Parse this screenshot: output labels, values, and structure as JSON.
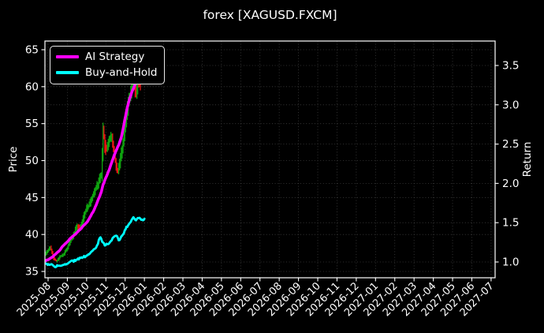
{
  "title": "forex [XAGUSD.FXCM]",
  "colors": {
    "background": "#000000",
    "text": "#ffffff",
    "grid": "#3f3f3f",
    "spine": "#ffffff",
    "strategy_line": "#ff00ff",
    "buyhold_line": "#00ffff",
    "price_up": "#0fa50f",
    "price_down": "#ee1414"
  },
  "chart_data": {
    "type": "line",
    "title": "forex [XAGUSD.FXCM]",
    "xlabel": "",
    "ylabel_left": "Price",
    "ylabel_right": "Return",
    "grid": true,
    "legend_position": "upper left",
    "x_tick_labels": [
      "2025-08",
      "2025-09",
      "2025-10",
      "2025-11",
      "2025-12",
      "2026-01",
      "2026-02",
      "2026-03",
      "2026-04",
      "2026-05",
      "2026-06",
      "2026-07",
      "2026-08",
      "2026-09",
      "2026-10",
      "2026-11",
      "2026-12",
      "2027-01",
      "2027-02",
      "2027-03",
      "2027-04",
      "2027-05",
      "2027-06",
      "2027-07"
    ],
    "x_axis_note": "series t values are months after 2025-08; data ends ~2026-01, axis extends to 2027-07",
    "y_left": {
      "label": "Price",
      "ticks": [
        35,
        40,
        45,
        50,
        55,
        60,
        65
      ],
      "range": [
        34.1,
        66.2
      ]
    },
    "y_right": {
      "label": "Return",
      "ticks": [
        1.0,
        1.5,
        2.0,
        2.5,
        3.0,
        3.5
      ],
      "range": [
        0.8,
        3.81
      ]
    },
    "legend": [
      {
        "label": "AI Strategy",
        "color": "#ff00ff"
      },
      {
        "label": "Buy-and-Hold",
        "color": "#00ffff"
      }
    ],
    "series": [
      {
        "name": "XAGUSD price",
        "axis": "left",
        "style": "hl-bars",
        "up_color": "#0fa50f",
        "down_color": "#ee1414",
        "close_points": [
          [
            -0.16,
            37.3
          ],
          [
            0.0,
            37.9
          ],
          [
            0.12,
            38.3
          ],
          [
            0.3,
            36.6
          ],
          [
            0.45,
            36.4
          ],
          [
            0.6,
            37.0
          ],
          [
            0.8,
            37.3
          ],
          [
            1.0,
            38.2
          ],
          [
            1.2,
            39.3
          ],
          [
            1.35,
            40.2
          ],
          [
            1.5,
            41.2
          ],
          [
            1.65,
            40.9
          ],
          [
            1.8,
            42.0
          ],
          [
            2.0,
            43.6
          ],
          [
            2.15,
            44.0
          ],
          [
            2.3,
            45.2
          ],
          [
            2.5,
            46.4
          ],
          [
            2.65,
            47.3
          ],
          [
            2.78,
            48.2
          ],
          [
            2.85,
            54.3
          ],
          [
            2.95,
            52.0
          ],
          [
            3.05,
            51.5
          ],
          [
            3.15,
            52.8
          ],
          [
            3.3,
            53.2
          ],
          [
            3.45,
            50.6
          ],
          [
            3.6,
            48.2
          ],
          [
            3.75,
            50.3
          ],
          [
            3.9,
            52.6
          ],
          [
            4.0,
            54.6
          ],
          [
            4.1,
            56.8
          ],
          [
            4.2,
            58.2
          ],
          [
            4.35,
            60.2
          ],
          [
            4.45,
            61.0
          ],
          [
            4.55,
            58.8
          ],
          [
            4.65,
            60.4
          ],
          [
            4.79,
            60.1
          ]
        ],
        "bar_halfrange_points": [
          [
            -0.16,
            0.45
          ],
          [
            0.5,
            0.4
          ],
          [
            1.0,
            0.5
          ],
          [
            1.5,
            0.7
          ],
          [
            2.0,
            0.8
          ],
          [
            2.5,
            0.9
          ],
          [
            2.8,
            1.3
          ],
          [
            2.85,
            3.2
          ],
          [
            2.9,
            1.6
          ],
          [
            3.2,
            1.2
          ],
          [
            3.5,
            1.3
          ],
          [
            3.8,
            1.2
          ],
          [
            4.0,
            1.4
          ],
          [
            4.2,
            1.6
          ],
          [
            4.4,
            1.5
          ],
          [
            4.6,
            1.4
          ],
          [
            4.79,
            1.1
          ]
        ]
      },
      {
        "name": "AI Strategy",
        "axis": "right",
        "style": "line",
        "color": "#ff00ff",
        "points": [
          [
            -0.16,
            1.01
          ],
          [
            0.0,
            1.03
          ],
          [
            0.2,
            1.06
          ],
          [
            0.4,
            1.1
          ],
          [
            0.6,
            1.15
          ],
          [
            0.8,
            1.21
          ],
          [
            1.0,
            1.26
          ],
          [
            1.2,
            1.31
          ],
          [
            1.4,
            1.35
          ],
          [
            1.6,
            1.4
          ],
          [
            1.8,
            1.45
          ],
          [
            2.0,
            1.5
          ],
          [
            2.2,
            1.58
          ],
          [
            2.4,
            1.67
          ],
          [
            2.6,
            1.79
          ],
          [
            2.75,
            1.88
          ],
          [
            2.85,
            1.98
          ],
          [
            3.0,
            2.07
          ],
          [
            3.2,
            2.19
          ],
          [
            3.35,
            2.3
          ],
          [
            3.5,
            2.4
          ],
          [
            3.65,
            2.48
          ],
          [
            3.8,
            2.58
          ],
          [
            3.9,
            2.7
          ],
          [
            4.0,
            2.83
          ],
          [
            4.1,
            2.95
          ],
          [
            4.2,
            3.05
          ],
          [
            4.35,
            3.16
          ],
          [
            4.5,
            3.25
          ],
          [
            4.65,
            3.31
          ],
          [
            4.79,
            3.33
          ]
        ]
      },
      {
        "name": "Buy-and-Hold",
        "axis": "right",
        "style": "line",
        "color": "#00ffff",
        "points": [
          [
            -0.16,
            1.0
          ],
          [
            -0.05,
            0.97
          ],
          [
            0.1,
            0.955
          ],
          [
            0.2,
            0.965
          ],
          [
            0.37,
            0.94
          ],
          [
            0.5,
            0.955
          ],
          [
            0.65,
            0.95
          ],
          [
            0.8,
            0.96
          ],
          [
            0.98,
            0.97
          ],
          [
            1.1,
            1.0
          ],
          [
            1.3,
            1.01
          ],
          [
            1.5,
            1.03
          ],
          [
            1.7,
            1.05
          ],
          [
            1.9,
            1.07
          ],
          [
            2.1,
            1.1
          ],
          [
            2.3,
            1.13
          ],
          [
            2.5,
            1.19
          ],
          [
            2.62,
            1.26
          ],
          [
            2.7,
            1.32
          ],
          [
            2.8,
            1.27
          ],
          [
            2.93,
            1.22
          ],
          [
            3.1,
            1.23
          ],
          [
            3.27,
            1.27
          ],
          [
            3.44,
            1.33
          ],
          [
            3.56,
            1.34
          ],
          [
            3.68,
            1.28
          ],
          [
            3.8,
            1.32
          ],
          [
            3.93,
            1.37
          ],
          [
            4.05,
            1.44
          ],
          [
            4.18,
            1.47
          ],
          [
            4.3,
            1.52
          ],
          [
            4.42,
            1.58
          ],
          [
            4.5,
            1.53
          ],
          [
            4.63,
            1.55
          ],
          [
            4.75,
            1.57
          ],
          [
            4.87,
            1.53
          ],
          [
            5.0,
            1.55
          ]
        ]
      }
    ]
  }
}
